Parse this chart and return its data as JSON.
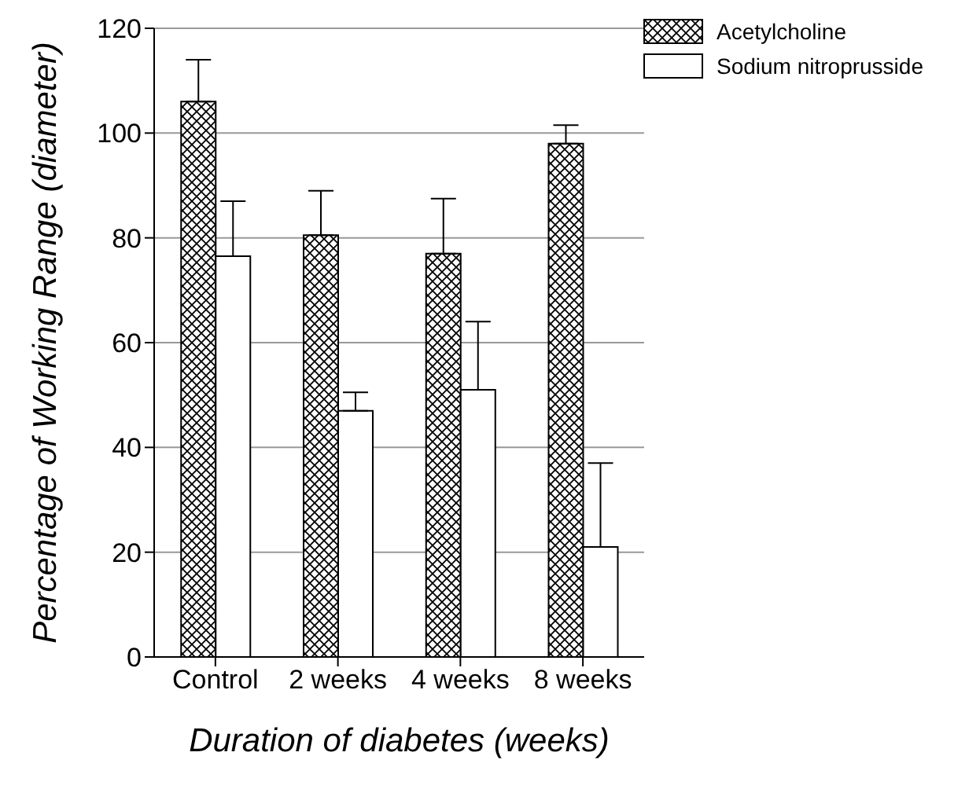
{
  "chart_data": {
    "type": "bar",
    "xlabel": "Duration of diabetes (weeks)",
    "ylabel": "Percentage of Working Range (diameter)",
    "categories": [
      "Control",
      "2 weeks",
      "4 weeks",
      "8 weeks"
    ],
    "series": [
      {
        "name": "Acetylcholine",
        "color": "#000000",
        "values": [
          106,
          80.5,
          77,
          98
        ],
        "errors": [
          [
            106,
            114
          ],
          [
            80.5,
            89
          ],
          [
            77,
            87.5
          ],
          [
            98,
            101.5
          ]
        ]
      },
      {
        "name": "Sodium nitroprusside",
        "color": "#ffffff",
        "values": [
          76.5,
          47,
          51,
          21
        ],
        "errors": [
          [
            76.5,
            87
          ],
          [
            47,
            50.5
          ],
          [
            51,
            64
          ],
          [
            21,
            37
          ]
        ]
      }
    ],
    "ylim": [
      0,
      120
    ],
    "yticks": [
      0,
      20,
      40,
      60,
      80,
      100,
      120
    ],
    "grid": "y",
    "legend": "top right"
  }
}
